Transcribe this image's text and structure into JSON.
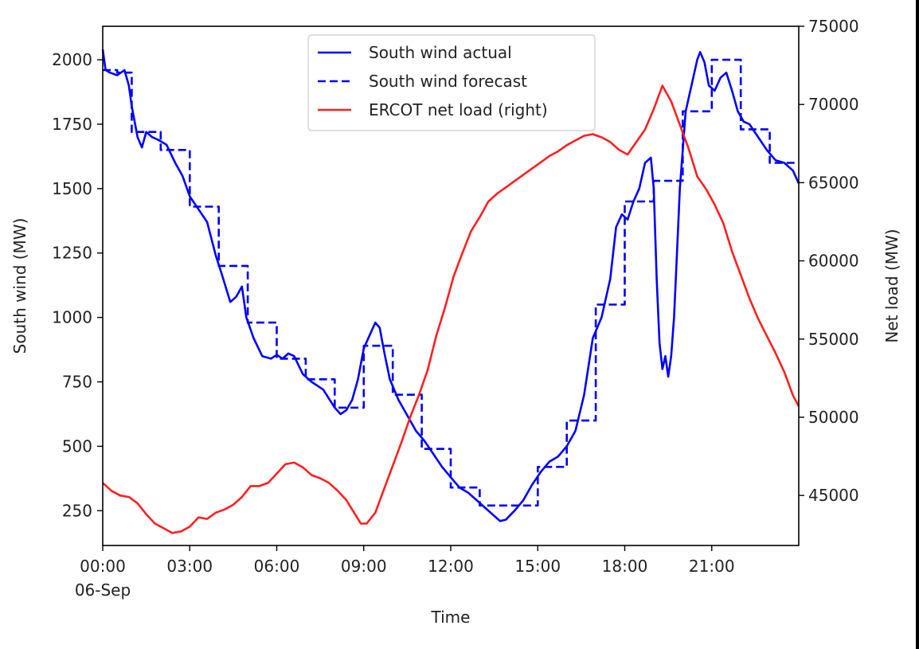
{
  "chart_data": {
    "type": "line",
    "xlabel": "Time",
    "ylabel_left": "South wind (MW)",
    "ylabel_right": "Net load (MW)",
    "x_tick_labels": [
      "00:00",
      "03:00",
      "06:00",
      "09:00",
      "12:00",
      "15:00",
      "18:00",
      "21:00"
    ],
    "x_tick_sublabel": "06-Sep",
    "x_tick_hours": [
      0,
      3,
      6,
      9,
      12,
      15,
      18,
      21
    ],
    "xlim_hours": [
      0,
      24
    ],
    "ylim_left": [
      115,
      2130
    ],
    "ylim_right": [
      41800,
      75000
    ],
    "y_ticks_left": [
      250,
      500,
      750,
      1000,
      1250,
      1500,
      1750,
      2000
    ],
    "y_ticks_right": [
      45000,
      50000,
      55000,
      60000,
      65000,
      70000,
      75000
    ],
    "legend_position": "upper center",
    "legend": [
      "South wind actual",
      "South wind forecast",
      "ERCOT net load (right)"
    ],
    "colors": {
      "wind": "#0000ff",
      "load": "#ff2020"
    },
    "series": [
      {
        "name": "South wind actual",
        "axis": "left",
        "style": "solid",
        "x": [
          0,
          0.1,
          0.25,
          0.5,
          0.75,
          0.9,
          1.0,
          1.2,
          1.35,
          1.5,
          1.7,
          1.9,
          2.2,
          2.5,
          2.75,
          3.0,
          3.3,
          3.6,
          3.9,
          4.1,
          4.4,
          4.6,
          4.8,
          4.95,
          5.2,
          5.5,
          5.8,
          6.0,
          6.2,
          6.4,
          6.6,
          6.9,
          7.2,
          7.6,
          8.0,
          8.2,
          8.4,
          8.6,
          8.8,
          9.0,
          9.2,
          9.4,
          9.55,
          9.7,
          9.9,
          10.2,
          10.5,
          10.8,
          11.1,
          11.4,
          11.7,
          12.0,
          12.3,
          12.6,
          12.9,
          13.2,
          13.5,
          13.7,
          13.9,
          14.2,
          14.5,
          14.8,
          15.1,
          15.4,
          15.7,
          16.0,
          16.3,
          16.6,
          16.9,
          17.2,
          17.5,
          17.7,
          17.9,
          18.1,
          18.3,
          18.5,
          18.7,
          18.9,
          19.0,
          19.1,
          19.2,
          19.3,
          19.4,
          19.5,
          19.6,
          19.7,
          19.8,
          19.9,
          20.1,
          20.3,
          20.5,
          20.6,
          20.75,
          20.9,
          21.1,
          21.3,
          21.5,
          21.7,
          21.9,
          22.1,
          22.3,
          22.6,
          22.9,
          23.2,
          23.5,
          23.8,
          24.0
        ],
        "y": [
          2040,
          1960,
          1950,
          1940,
          1960,
          1900,
          1820,
          1700,
          1660,
          1720,
          1700,
          1690,
          1670,
          1600,
          1550,
          1470,
          1420,
          1370,
          1240,
          1170,
          1060,
          1080,
          1120,
          1000,
          920,
          850,
          840,
          855,
          840,
          860,
          850,
          780,
          750,
          720,
          650,
          625,
          640,
          680,
          760,
          880,
          930,
          980,
          960,
          870,
          760,
          680,
          620,
          560,
          520,
          470,
          420,
          380,
          340,
          320,
          290,
          260,
          230,
          210,
          215,
          250,
          290,
          350,
          400,
          440,
          460,
          500,
          560,
          700,
          920,
          1000,
          1150,
          1350,
          1400,
          1380,
          1450,
          1500,
          1600,
          1620,
          1500,
          1150,
          900,
          800,
          850,
          770,
          850,
          1000,
          1250,
          1500,
          1800,
          1900,
          2000,
          2030,
          1990,
          1900,
          1880,
          1930,
          1950,
          1880,
          1800,
          1760,
          1750,
          1700,
          1650,
          1610,
          1600,
          1570,
          1520
        ]
      },
      {
        "name": "South wind forecast",
        "axis": "left",
        "style": "dashed",
        "x": [
          0,
          0.5,
          1.0,
          2.0,
          3.0,
          4.0,
          5.0,
          6.0,
          7.0,
          8.0,
          9.0,
          10.0,
          11.0,
          12.0,
          13.0,
          14.0,
          15.0,
          16.0,
          17.0,
          18.0,
          19.0,
          20.0,
          21.0,
          22.0,
          23.0,
          24.0
        ],
        "y": [
          1960,
          1950,
          1720,
          1650,
          1430,
          1200,
          980,
          840,
          760,
          650,
          890,
          700,
          490,
          340,
          270,
          270,
          420,
          600,
          1050,
          1450,
          1530,
          1800,
          2000,
          1730,
          1600,
          1600
        ],
        "step": "post"
      },
      {
        "name": "ERCOT net load (right)",
        "axis": "right",
        "style": "solid",
        "x": [
          0,
          0.3,
          0.6,
          0.9,
          1.2,
          1.5,
          1.8,
          2.1,
          2.4,
          2.7,
          3.0,
          3.3,
          3.6,
          3.9,
          4.2,
          4.5,
          4.8,
          5.1,
          5.4,
          5.7,
          6.0,
          6.3,
          6.6,
          6.9,
          7.2,
          7.5,
          7.8,
          8.1,
          8.4,
          8.7,
          8.9,
          9.1,
          9.4,
          9.7,
          10.0,
          10.3,
          10.6,
          10.9,
          11.2,
          11.5,
          11.8,
          12.1,
          12.4,
          12.7,
          13.0,
          13.3,
          13.6,
          13.9,
          14.2,
          14.5,
          14.8,
          15.1,
          15.4,
          15.7,
          16.0,
          16.3,
          16.6,
          16.9,
          17.2,
          17.5,
          17.8,
          18.1,
          18.4,
          18.7,
          19.0,
          19.3,
          19.6,
          19.9,
          20.2,
          20.5,
          20.8,
          21.1,
          21.4,
          21.7,
          22.0,
          22.3,
          22.6,
          22.9,
          23.2,
          23.5,
          23.8,
          24.0
        ],
        "y": [
          45800,
          45300,
          45000,
          44900,
          44500,
          43800,
          43200,
          42900,
          42600,
          42700,
          43000,
          43600,
          43500,
          43900,
          44100,
          44400,
          44900,
          45600,
          45600,
          45800,
          46400,
          47000,
          47100,
          46800,
          46300,
          46100,
          45800,
          45300,
          44700,
          43800,
          43200,
          43200,
          43900,
          45400,
          46900,
          48400,
          50000,
          51400,
          53000,
          55200,
          57000,
          59000,
          60500,
          61900,
          62800,
          63800,
          64300,
          64700,
          65100,
          65500,
          65900,
          66300,
          66700,
          67000,
          67400,
          67700,
          68000,
          68100,
          67900,
          67600,
          67100,
          66800,
          67600,
          68400,
          69700,
          71200,
          70200,
          68700,
          67200,
          65400,
          64600,
          63600,
          62400,
          60600,
          59100,
          57600,
          56300,
          55200,
          54100,
          52900,
          51400,
          50700
        ]
      }
    ]
  }
}
